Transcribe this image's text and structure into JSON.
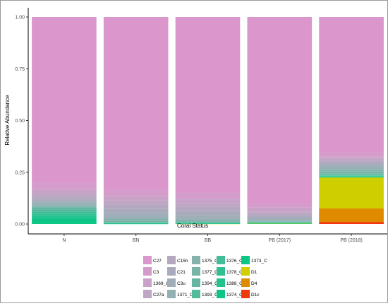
{
  "chart_data": {
    "type": "bar",
    "stacked": true,
    "xlabel": "Coral Status",
    "ylabel": "Relative Abundance",
    "ylim": [
      0,
      1.0
    ],
    "yticks": [
      0.0,
      0.25,
      0.5,
      0.75,
      1.0
    ],
    "ytick_labels": [
      "0.00",
      "0.25",
      "0.50",
      "0.75",
      "1.00"
    ],
    "grid": false,
    "legend_position": "bottom",
    "categories": [
      "N",
      "BN",
      "BB",
      "PB (2017)",
      "PB (2018)"
    ],
    "series": [
      {
        "name": "C27",
        "color": "#DB96CC",
        "values": [
          0.83,
          0.86,
          0.87,
          0.91,
          0.68
        ]
      },
      {
        "name": "C3",
        "color": "#D49CCA",
        "values": [
          0.03,
          0.03,
          0.03,
          0.02,
          0.02
        ]
      },
      {
        "name": "1369_C",
        "color": "#C9A2C8",
        "values": [
          0.02,
          0.02,
          0.02,
          0.02,
          0.01
        ]
      },
      {
        "name": "C27a",
        "color": "#BEA6C4",
        "values": [
          0.02,
          0.02,
          0.02,
          0.01,
          0.01
        ]
      },
      {
        "name": "C15h",
        "color": "#B4A8C0",
        "values": [
          0.01,
          0.02,
          0.02,
          0.01,
          0.01
        ]
      },
      {
        "name": "C21",
        "color": "#A9AABC",
        "values": [
          0.01,
          0.02,
          0.02,
          0.01,
          0.01
        ]
      },
      {
        "name": "C3u",
        "color": "#9FAEB8",
        "values": [
          0.01,
          0.02,
          0.015,
          0.01,
          0.01
        ]
      },
      {
        "name": "1371_C",
        "color": "#93B0B3",
        "values": [
          0.01,
          0.01,
          0.01,
          0.005,
          0.01
        ]
      },
      {
        "name": "1375_C",
        "color": "#86B2AD",
        "values": [
          0.005,
          0.01,
          0.005,
          0.003,
          0.01
        ]
      },
      {
        "name": "1377_C",
        "color": "#78B4A8",
        "values": [
          0.005,
          0.005,
          0.003,
          0.002,
          0.01
        ]
      },
      {
        "name": "1394_C",
        "color": "#67B6A3",
        "values": [
          0.01,
          0.002,
          0.002,
          0.001,
          0.005
        ]
      },
      {
        "name": "1393_C",
        "color": "#55B99E",
        "values": [
          0.01,
          0.002,
          0.001,
          0.001,
          0.005
        ]
      },
      {
        "name": "1376_C",
        "color": "#43BC98",
        "values": [
          0.01,
          0.001,
          0.001,
          0.001,
          0.002
        ]
      },
      {
        "name": "1378_C",
        "color": "#31BF93",
        "values": [
          0.01,
          0.001,
          0.001,
          0.001,
          0.002
        ]
      },
      {
        "name": "1388_C",
        "color": "#20C28E",
        "values": [
          0.01,
          0.001,
          0.001,
          0.001,
          0.002
        ]
      },
      {
        "name": "1374_C",
        "color": "#0EC589",
        "values": [
          0.02,
          0.001,
          0.001,
          0.001,
          0.002
        ]
      },
      {
        "name": "1373_C",
        "color": "#0AC784",
        "values": [
          0.01,
          0.001,
          0.001,
          0.001,
          0.002
        ]
      },
      {
        "name": "D1",
        "color": "#CFCF00",
        "values": [
          0.0,
          0.0,
          0.001,
          0.002,
          0.15
        ]
      },
      {
        "name": "D4",
        "color": "#E08A00",
        "values": [
          0.0,
          0.0,
          0.0,
          0.0,
          0.065
        ]
      },
      {
        "name": "D1c",
        "color": "#EE3A0A",
        "values": [
          0.0,
          0.0,
          0.0,
          0.0,
          0.01
        ]
      }
    ]
  }
}
